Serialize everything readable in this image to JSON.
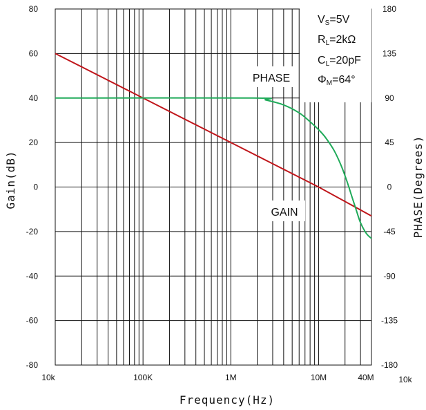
{
  "chart_data": {
    "type": "line",
    "xlabel": "Frequency(Hz)",
    "xlabel_main": "Frequency",
    "xlabel_unit": "(Hz)",
    "ylabel_left": "Gain(dB)",
    "ylabel_right": "PHASE(Degrees)",
    "x_scale": "log",
    "xlim": [
      10000,
      40000000
    ],
    "ylim_left": [
      -80,
      80
    ],
    "ylim_right": [
      -180,
      180
    ],
    "grid": true,
    "x_tick_labels": [
      {
        "value": 10000,
        "label": "10k"
      },
      {
        "value": 100000,
        "label": "100K"
      },
      {
        "value": 1000000,
        "label": "1M"
      },
      {
        "value": 10000000,
        "label": "10M"
      },
      {
        "value": 40000000,
        "label": "40M"
      }
    ],
    "extra_label": "10k",
    "y_ticks_left": [
      {
        "value": 80,
        "label": "80"
      },
      {
        "value": 60,
        "label": "60"
      },
      {
        "value": 40,
        "label": "40"
      },
      {
        "value": 20,
        "label": "20"
      },
      {
        "value": 0,
        "label": "0"
      },
      {
        "value": -20,
        "label": "-20"
      },
      {
        "value": -40,
        "label": "-40"
      },
      {
        "value": -60,
        "label": "-60"
      },
      {
        "value": -80,
        "label": "-80"
      }
    ],
    "y_ticks_right": [
      {
        "value": 180,
        "label": "180"
      },
      {
        "value": 135,
        "label": "135"
      },
      {
        "value": 90,
        "label": "90"
      },
      {
        "value": 45,
        "label": "45"
      },
      {
        "value": 0,
        "label": "0"
      },
      {
        "value": -45,
        "label": "-45"
      },
      {
        "value": -90,
        "label": "-90"
      },
      {
        "value": -135,
        "label": "-135"
      },
      {
        "value": -180,
        "label": "-180"
      }
    ],
    "series": [
      {
        "name": "GAIN",
        "axis": "left",
        "color": "#c0161b",
        "x": [
          10000,
          100000,
          1000000,
          10000000,
          40000000
        ],
        "y": [
          60,
          40,
          20,
          0,
          -13
        ]
      },
      {
        "name": "PHASE",
        "axis": "right",
        "color": "#1faa59",
        "x": [
          10000,
          1800000,
          2500000,
          4000000,
          6000000,
          8000000,
          10000000,
          12000000,
          15000000,
          18000000,
          21000000,
          24000000,
          27000000,
          30000000,
          35000000,
          40000000
        ],
        "y": [
          90,
          90,
          88,
          83,
          75,
          66,
          58,
          50,
          37,
          22,
          6,
          -10,
          -24,
          -36,
          -47,
          -52
        ]
      }
    ],
    "annotations": {
      "vs": {
        "main": "V",
        "sub": "S",
        "rest": "=5V"
      },
      "rl": {
        "main": "R",
        "sub": "L",
        "rest": "=2kΩ"
      },
      "cl": {
        "main": "C",
        "sub": "L",
        "rest": "=20pF"
      },
      "pm": {
        "main": "Φ",
        "sub": "M",
        "rest": "=64°"
      }
    }
  }
}
